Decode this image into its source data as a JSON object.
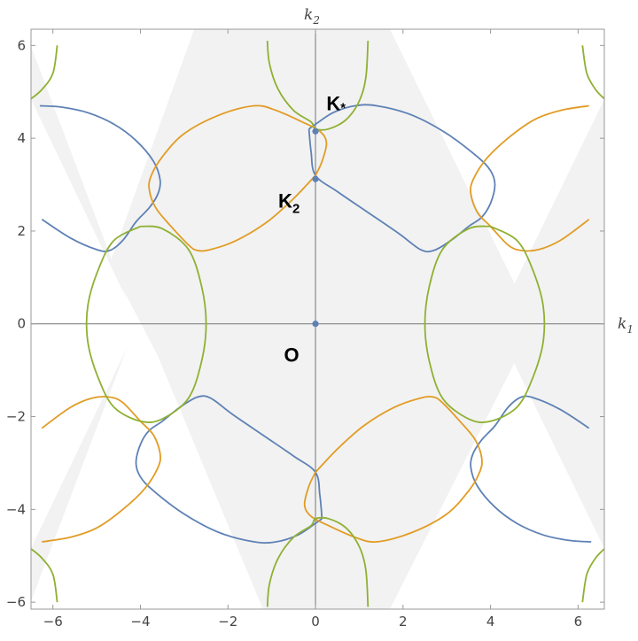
{
  "chart_data": {
    "type": "line",
    "title": "",
    "xlabel": {
      "main": "k",
      "sub": "1"
    },
    "ylabel": {
      "main": "k",
      "sub": "2"
    },
    "xlim": [
      -6.5,
      6.6
    ],
    "ylim": [
      -6.15,
      6.35
    ],
    "x_ticks": [
      -6,
      -4,
      -2,
      0,
      2,
      4,
      6
    ],
    "y_ticks": [
      -6,
      -4,
      -2,
      0,
      2,
      4,
      6
    ],
    "x_tick_labels": [
      "−6",
      "−4",
      "−2",
      "0",
      "2",
      "4",
      "6"
    ],
    "y_tick_labels": [
      "−6",
      "−4",
      "−2",
      "0",
      "2",
      "4",
      "6"
    ],
    "grid": false,
    "legend": "none",
    "colors": {
      "blue": "#5E81B5",
      "orange": "#E19C24",
      "green": "#8FB032",
      "shade": "#F2F2F2",
      "point": "#5E81B5",
      "axis": "#777777"
    },
    "shaded_regions": [
      [
        [
          -6.5,
          5.98
        ],
        [
          -6.5,
          4.84
        ],
        [
          -4.3,
          0.5
        ]
      ],
      [
        [
          -6.5,
          -5.98
        ],
        [
          -6.5,
          -4.84
        ],
        [
          -4.3,
          -0.5
        ]
      ],
      [
        [
          6.6,
          4.84
        ],
        [
          6.6,
          -4.84
        ],
        [
          4.1,
          0
        ]
      ],
      [
        [
          -2.77,
          6.35
        ],
        [
          -4.7,
          1.3
        ],
        [
          -3.6,
          -0.7
        ],
        [
          -1.2,
          -6.15
        ],
        [
          -0.01,
          -6.15
        ],
        [
          -0.01,
          6.35
        ]
      ],
      [
        [
          0.01,
          6.35
        ],
        [
          1.7,
          6.35
        ],
        [
          5.0,
          0
        ],
        [
          1.7,
          -6.15
        ],
        [
          0.01,
          -6.15
        ]
      ]
    ],
    "series": [
      {
        "color": "blue",
        "paths": [
          [
            [
              -6.3,
              4.7
            ],
            [
              -5.8,
              4.67
            ],
            [
              -5.2,
              4.55
            ],
            [
              -4.6,
              4.3
            ],
            [
              -4.1,
              3.95
            ],
            [
              -3.7,
              3.5
            ],
            [
              -3.55,
              3.1
            ],
            [
              -3.6,
              2.8
            ],
            [
              -3.8,
              2.5
            ],
            [
              -4.1,
              2.2
            ],
            [
              -4.4,
              1.8
            ],
            [
              -4.7,
              1.58
            ],
            [
              -5.0,
              1.6
            ],
            [
              -5.6,
              1.85
            ],
            [
              -6.25,
              2.25
            ]
          ],
          [
            [
              -0.15,
              4.2
            ],
            [
              0.0,
              4.3
            ],
            [
              0.4,
              4.55
            ],
            [
              0.9,
              4.7
            ],
            [
              1.4,
              4.7
            ],
            [
              2.2,
              4.5
            ],
            [
              3.0,
              4.1
            ],
            [
              3.7,
              3.6
            ],
            [
              4.0,
              3.3
            ],
            [
              4.1,
              3.0
            ],
            [
              4.0,
              2.6
            ],
            [
              3.8,
              2.3
            ],
            [
              3.5,
              2.1
            ],
            [
              3.1,
              1.8
            ],
            [
              2.7,
              1.58
            ],
            [
              2.4,
              1.6
            ],
            [
              1.9,
              1.95
            ],
            [
              1.2,
              2.4
            ],
            [
              0.5,
              2.85
            ],
            [
              0.0,
              3.2
            ],
            [
              -0.1,
              3.7
            ],
            [
              -0.15,
              4.2
            ]
          ],
          [
            [
              6.25,
              -2.25
            ],
            [
              5.6,
              -1.85
            ],
            [
              5.0,
              -1.6
            ],
            [
              4.7,
              -1.58
            ],
            [
              4.4,
              -1.8
            ],
            [
              4.1,
              -2.2
            ],
            [
              3.8,
              -2.5
            ],
            [
              3.6,
              -2.8
            ],
            [
              3.55,
              -3.1
            ],
            [
              3.7,
              -3.5
            ],
            [
              4.1,
              -3.95
            ],
            [
              4.6,
              -4.3
            ],
            [
              5.2,
              -4.55
            ],
            [
              5.8,
              -4.67
            ],
            [
              6.3,
              -4.7
            ]
          ],
          [
            [
              0.15,
              -4.2
            ],
            [
              0.0,
              -4.3
            ],
            [
              -0.4,
              -4.55
            ],
            [
              -0.9,
              -4.7
            ],
            [
              -1.4,
              -4.7
            ],
            [
              -2.2,
              -4.5
            ],
            [
              -3.0,
              -4.1
            ],
            [
              -3.7,
              -3.6
            ],
            [
              -4.0,
              -3.3
            ],
            [
              -4.1,
              -3.0
            ],
            [
              -4.0,
              -2.6
            ],
            [
              -3.8,
              -2.3
            ],
            [
              -3.5,
              -2.1
            ],
            [
              -3.1,
              -1.8
            ],
            [
              -2.7,
              -1.58
            ],
            [
              -2.4,
              -1.6
            ],
            [
              -1.9,
              -1.95
            ],
            [
              -1.2,
              -2.4
            ],
            [
              -0.5,
              -2.85
            ],
            [
              0.0,
              -3.2
            ],
            [
              0.1,
              -3.7
            ],
            [
              0.15,
              -4.2
            ]
          ]
        ]
      },
      {
        "color": "orange",
        "paths": [
          [
            [
              0.0,
              3.2
            ],
            [
              0.15,
              3.5
            ],
            [
              0.25,
              3.9
            ],
            [
              0.1,
              4.15
            ],
            [
              -0.3,
              4.35
            ],
            [
              -0.9,
              4.6
            ],
            [
              -1.4,
              4.7
            ],
            [
              -2.2,
              4.5
            ],
            [
              -3.0,
              4.1
            ],
            [
              -3.5,
              3.6
            ],
            [
              -3.75,
              3.2
            ],
            [
              -3.8,
              2.9
            ],
            [
              -3.65,
              2.5
            ],
            [
              -3.3,
              2.1
            ],
            [
              -2.9,
              1.7
            ],
            [
              -2.7,
              1.58
            ],
            [
              -2.4,
              1.6
            ],
            [
              -1.8,
              1.8
            ],
            [
              -1.1,
              2.2
            ],
            [
              -0.5,
              2.7
            ],
            [
              0.0,
              3.2
            ]
          ],
          [
            [
              6.25,
              4.7
            ],
            [
              5.6,
              4.6
            ],
            [
              5.0,
              4.4
            ],
            [
              4.4,
              4.0
            ],
            [
              3.9,
              3.55
            ],
            [
              3.6,
              3.1
            ],
            [
              3.55,
              2.8
            ],
            [
              3.7,
              2.4
            ],
            [
              4.0,
              2.1
            ],
            [
              4.4,
              1.7
            ],
            [
              4.7,
              1.58
            ],
            [
              5.1,
              1.6
            ],
            [
              5.6,
              1.8
            ],
            [
              6.25,
              2.25
            ]
          ],
          [
            [
              0.0,
              -3.2
            ],
            [
              -0.15,
              -3.5
            ],
            [
              -0.25,
              -3.9
            ],
            [
              -0.1,
              -4.15
            ],
            [
              0.3,
              -4.35
            ],
            [
              0.9,
              -4.6
            ],
            [
              1.4,
              -4.7
            ],
            [
              2.2,
              -4.5
            ],
            [
              3.0,
              -4.1
            ],
            [
              3.5,
              -3.6
            ],
            [
              3.75,
              -3.2
            ],
            [
              3.8,
              -2.9
            ],
            [
              3.65,
              -2.5
            ],
            [
              3.3,
              -2.1
            ],
            [
              2.9,
              -1.7
            ],
            [
              2.7,
              -1.58
            ],
            [
              2.4,
              -1.6
            ],
            [
              1.8,
              -1.8
            ],
            [
              1.1,
              -2.2
            ],
            [
              0.5,
              -2.7
            ],
            [
              0.0,
              -3.2
            ]
          ],
          [
            [
              -6.25,
              -4.7
            ],
            [
              -5.6,
              -4.6
            ],
            [
              -5.0,
              -4.4
            ],
            [
              -4.4,
              -4.0
            ],
            [
              -3.9,
              -3.55
            ],
            [
              -3.6,
              -3.1
            ],
            [
              -3.55,
              -2.8
            ],
            [
              -3.7,
              -2.4
            ],
            [
              -4.0,
              -2.1
            ],
            [
              -4.4,
              -1.7
            ],
            [
              -4.7,
              -1.58
            ],
            [
              -5.1,
              -1.6
            ],
            [
              -5.6,
              -1.8
            ],
            [
              -6.25,
              -2.25
            ]
          ]
        ]
      },
      {
        "color": "green",
        "paths": [
          [
            [
              -1.1,
              6.1
            ],
            [
              -1.05,
              5.6
            ],
            [
              -0.85,
              5.05
            ],
            [
              -0.5,
              4.6
            ],
            [
              -0.1,
              4.35
            ],
            [
              0.0,
              4.2
            ],
            [
              0.3,
              4.2
            ],
            [
              0.7,
              4.4
            ],
            [
              1.0,
              4.8
            ],
            [
              1.15,
              5.3
            ],
            [
              1.2,
              6.1
            ]
          ],
          [
            [
              -1.1,
              -6.1
            ],
            [
              -1.05,
              -5.6
            ],
            [
              -0.85,
              -5.05
            ],
            [
              -0.5,
              -4.6
            ],
            [
              -0.1,
              -4.35
            ],
            [
              0.0,
              -4.2
            ],
            [
              0.3,
              -4.2
            ],
            [
              0.7,
              -4.4
            ],
            [
              1.0,
              -4.8
            ],
            [
              1.15,
              -5.3
            ],
            [
              1.2,
              -6.1
            ]
          ],
          [
            [
              -4.0,
              2.1
            ],
            [
              -4.6,
              1.8
            ],
            [
              -4.95,
              1.2
            ],
            [
              -5.2,
              0.4
            ],
            [
              -5.2,
              -0.4
            ],
            [
              -4.95,
              -1.2
            ],
            [
              -4.6,
              -1.8
            ],
            [
              -4.0,
              -2.1
            ],
            [
              -3.5,
              -2.05
            ],
            [
              -2.9,
              -1.6
            ],
            [
              -2.6,
              -0.8
            ],
            [
              -2.5,
              0.0
            ],
            [
              -2.6,
              0.8
            ],
            [
              -2.9,
              1.6
            ],
            [
              -3.5,
              2.05
            ],
            [
              -4.0,
              2.1
            ]
          ],
          [
            [
              4.0,
              2.1
            ],
            [
              4.6,
              1.8
            ],
            [
              4.95,
              1.2
            ],
            [
              5.2,
              0.4
            ],
            [
              5.2,
              -0.4
            ],
            [
              4.95,
              -1.2
            ],
            [
              4.6,
              -1.8
            ],
            [
              4.0,
              -2.1
            ],
            [
              3.5,
              -2.05
            ],
            [
              2.9,
              -1.6
            ],
            [
              2.6,
              -0.8
            ],
            [
              2.5,
              0.0
            ],
            [
              2.6,
              0.8
            ],
            [
              2.9,
              1.6
            ],
            [
              3.5,
              2.05
            ],
            [
              4.0,
              2.1
            ]
          ],
          [
            [
              -5.9,
              6.0
            ],
            [
              -6.0,
              5.4
            ],
            [
              -6.25,
              5.05
            ],
            [
              -6.5,
              4.85
            ]
          ],
          [
            [
              -5.9,
              -6.0
            ],
            [
              -6.0,
              -5.4
            ],
            [
              -6.25,
              -5.05
            ],
            [
              -6.5,
              -4.85
            ]
          ],
          [
            [
              6.1,
              6.0
            ],
            [
              6.2,
              5.4
            ],
            [
              6.4,
              5.05
            ],
            [
              6.6,
              4.85
            ]
          ],
          [
            [
              6.1,
              -6.0
            ],
            [
              6.2,
              -5.4
            ],
            [
              6.4,
              -5.05
            ],
            [
              6.6,
              -4.85
            ]
          ]
        ]
      }
    ],
    "points": [
      {
        "x": 0.0,
        "y": 0.0
      },
      {
        "x": 0.0,
        "y": 3.12
      },
      {
        "x": 0.0,
        "y": 4.15
      }
    ],
    "annotations": [
      {
        "main": "O",
        "sub": "",
        "x": -0.72,
        "y": -0.82
      },
      {
        "main": "K",
        "sub": "2",
        "x": -0.85,
        "y": 2.5
      },
      {
        "main": "K",
        "sub": "*",
        "x": 0.25,
        "y": 4.6
      }
    ]
  }
}
